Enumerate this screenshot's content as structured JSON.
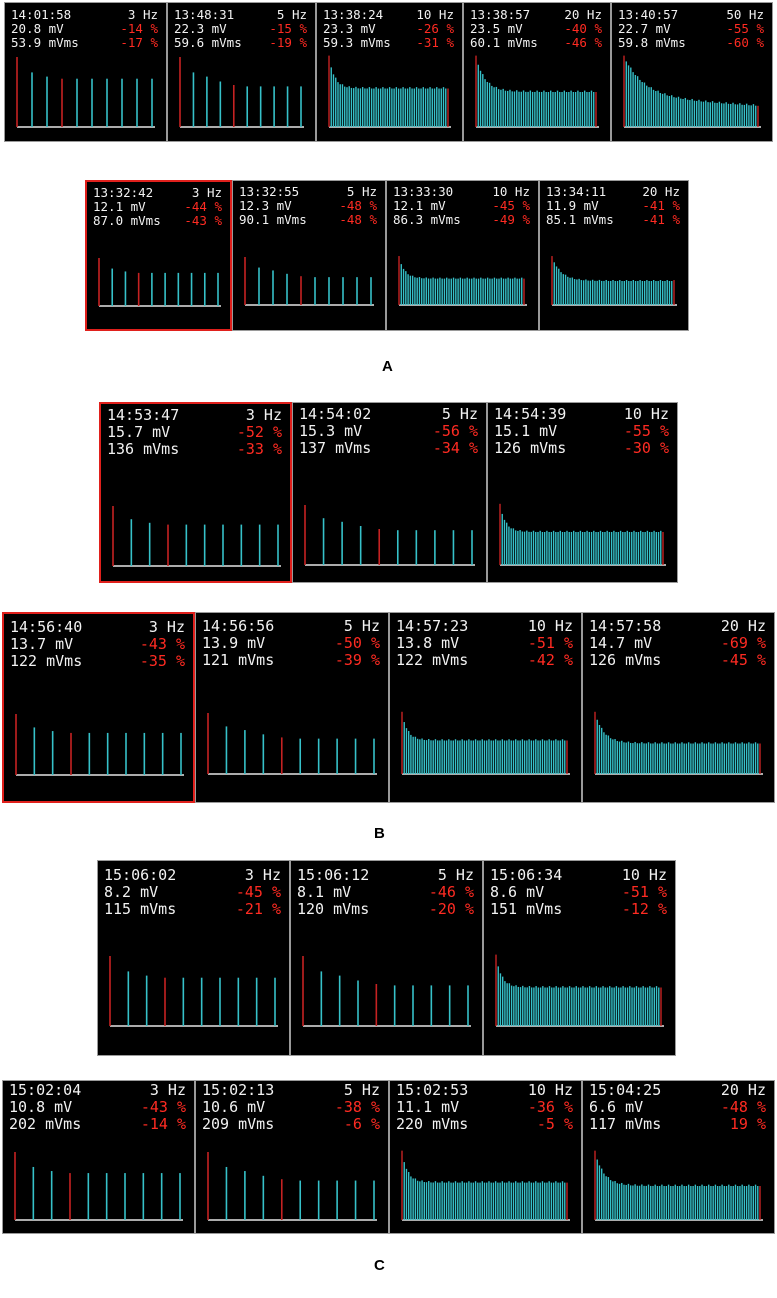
{
  "colors": {
    "bar": "#36c1c9",
    "stim_bar": "#c62222",
    "baseline": "#e6e6e6",
    "delta": "#ff2b22",
    "text": "#f2f2f2",
    "background": "#000000",
    "selected_border": "#e0201c"
  },
  "sections": [
    {
      "label": "A",
      "rows": [
        [
          {
            "time": "14:01:58",
            "freq": "3 Hz",
            "amp": "20.8 mV",
            "amp_pct": "-14 %",
            "area": "53.9 mVms",
            "area_pct": "-17 %"
          },
          {
            "time": "13:48:31",
            "freq": "5 Hz",
            "amp": "22.3 mV",
            "amp_pct": "-15 %",
            "area": "59.6 mVms",
            "area_pct": "-19 %"
          },
          {
            "time": "13:38:24",
            "freq": "10 Hz",
            "amp": "23.3 mV",
            "amp_pct": "-26 %",
            "area": "59.3 mVms",
            "area_pct": "-31 %"
          },
          {
            "time": "13:38:57",
            "freq": "20 Hz",
            "amp": "23.5 mV",
            "amp_pct": "-40 %",
            "area": "60.1 mVms",
            "area_pct": "-46 %"
          },
          {
            "time": "13:40:57",
            "freq": "50 Hz",
            "amp": "22.7 mV",
            "amp_pct": "-55 %",
            "area": "59.8 mVms",
            "area_pct": "-60 %"
          }
        ],
        [
          {
            "time": "13:32:42",
            "freq": "3 Hz",
            "amp": "12.1 mV",
            "amp_pct": "-44 %",
            "area": "87.0 mVms",
            "area_pct": "-43 %",
            "selected": true
          },
          {
            "time": "13:32:55",
            "freq": "5 Hz",
            "amp": "12.3 mV",
            "amp_pct": "-48 %",
            "area": "90.1 mVms",
            "area_pct": "-48 %"
          },
          {
            "time": "13:33:30",
            "freq": "10 Hz",
            "amp": "12.1 mV",
            "amp_pct": "-45 %",
            "area": "86.3 mVms",
            "area_pct": "-49 %"
          },
          {
            "time": "13:34:11",
            "freq": "20 Hz",
            "amp": "11.9 mV",
            "amp_pct": "-41 %",
            "area": "85.1 mVms",
            "area_pct": "-41 %"
          }
        ]
      ]
    },
    {
      "label": "B",
      "rows": [
        [
          {
            "time": "14:53:47",
            "freq": "3 Hz",
            "amp": "15.7 mV",
            "amp_pct": "-52 %",
            "area": "136 mVms",
            "area_pct": "-33 %",
            "selected": true
          },
          {
            "time": "14:54:02",
            "freq": "5 Hz",
            "amp": "15.3 mV",
            "amp_pct": "-56 %",
            "area": "137 mVms",
            "area_pct": "-34 %"
          },
          {
            "time": "14:54:39",
            "freq": "10 Hz",
            "amp": "15.1 mV",
            "amp_pct": "-55 %",
            "area": "126 mVms",
            "area_pct": "-30 %"
          }
        ],
        [
          {
            "time": "14:56:40",
            "freq": "3 Hz",
            "amp": "13.7 mV",
            "amp_pct": "-43 %",
            "area": "122 mVms",
            "area_pct": "-35 %",
            "selected": true
          },
          {
            "time": "14:56:56",
            "freq": "5 Hz",
            "amp": "13.9 mV",
            "amp_pct": "-50 %",
            "area": "121 mVms",
            "area_pct": "-39 %"
          },
          {
            "time": "14:57:23",
            "freq": "10 Hz",
            "amp": "13.8 mV",
            "amp_pct": "-51 %",
            "area": "122 mVms",
            "area_pct": "-42 %"
          },
          {
            "time": "14:57:58",
            "freq": "20 Hz",
            "amp": "14.7 mV",
            "amp_pct": "-69 %",
            "area": "126 mVms",
            "area_pct": "-45 %"
          }
        ]
      ]
    },
    {
      "label": "C",
      "rows": [
        [
          {
            "time": "15:06:02",
            "freq": "3 Hz",
            "amp": "8.2 mV",
            "amp_pct": "-45 %",
            "area": "115 mVms",
            "area_pct": "-21 %"
          },
          {
            "time": "15:06:12",
            "freq": "5 Hz",
            "amp": "8.1 mV",
            "amp_pct": "-46 %",
            "area": "120 mVms",
            "area_pct": "-20 %"
          },
          {
            "time": "15:06:34",
            "freq": "10 Hz",
            "amp": "8.6 mV",
            "amp_pct": "-51 %",
            "area": "151 mVms",
            "area_pct": "-12 %"
          }
        ],
        [
          {
            "time": "15:02:04",
            "freq": "3 Hz",
            "amp": "10.8 mV",
            "amp_pct": "-43 %",
            "area": "202 mVms",
            "area_pct": "-14 %"
          },
          {
            "time": "15:02:13",
            "freq": "5 Hz",
            "amp": "10.6 mV",
            "amp_pct": "-38 %",
            "area": "209 mVms",
            "area_pct": "-6 %"
          },
          {
            "time": "15:02:53",
            "freq": "10 Hz",
            "amp": "11.1 mV",
            "amp_pct": "-36 %",
            "area": "220 mVms",
            "area_pct": "-5 %"
          },
          {
            "time": "15:04:25",
            "freq": "20 Hz",
            "amp": "6.6 mV",
            "amp_pct": "-48 %",
            "area": "117 mVms",
            "area_pct": "19 %"
          }
        ]
      ]
    }
  ]
}
